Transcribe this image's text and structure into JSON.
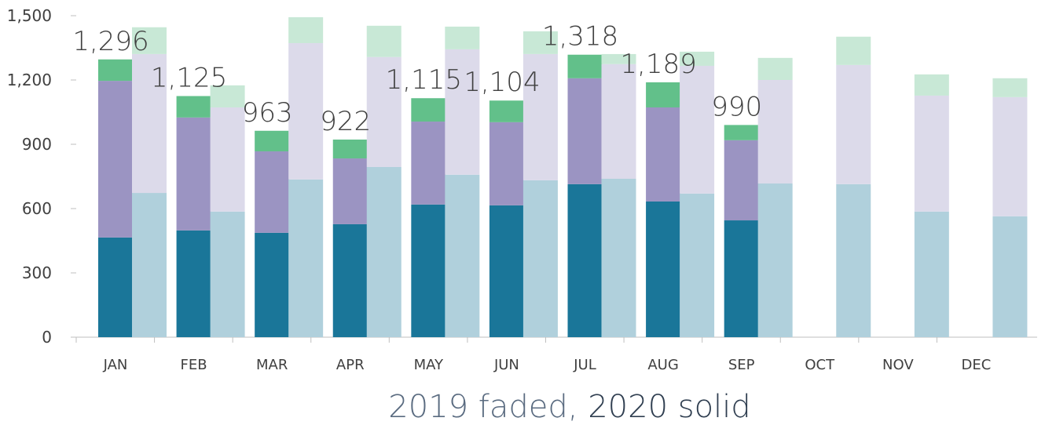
{
  "chart_data": {
    "type": "stacked_bar",
    "caption": [
      "2019 faded,",
      "2020 solid"
    ],
    "categories": [
      "JAN",
      "FEB",
      "MAR",
      "APR",
      "MAY",
      "JUN",
      "JUL",
      "AUG",
      "SEP",
      "OCT",
      "NOV",
      "DEC"
    ],
    "solid": [
      {
        "color": "#1a7699",
        "values": [
          465,
          498,
          487,
          527,
          619,
          615,
          714,
          633,
          545,
          null,
          null,
          null
        ]
      },
      {
        "color": "#9b94c2",
        "values": [
          731,
          527,
          380,
          307,
          387,
          388,
          494,
          439,
          374,
          null,
          null,
          null
        ]
      },
      {
        "color": "#62c08a",
        "values": [
          100,
          100,
          96,
          88,
          109,
          101,
          110,
          117,
          71,
          null,
          null,
          null
        ]
      }
    ],
    "faded": [
      {
        "color": "#b0d0dc",
        "values": [
          673,
          586,
          736,
          794,
          758,
          732,
          739,
          670,
          717,
          714,
          586,
          564
        ]
      },
      {
        "color": "#dcdaea",
        "values": [
          648,
          486,
          636,
          513,
          585,
          589,
          535,
          596,
          483,
          556,
          541,
          556
        ]
      },
      {
        "color": "#c8e8d6",
        "values": [
          125,
          103,
          121,
          146,
          106,
          106,
          47,
          66,
          103,
          132,
          99,
          88
        ]
      }
    ],
    "totals": {
      "values": [
        1296,
        1125,
        963,
        922,
        1115,
        1104,
        1318,
        1189,
        990,
        null,
        null,
        null
      ],
      "value_labels": [
        "1,296",
        "1,125",
        "963",
        "922",
        "1,115",
        "1,104",
        "1,318",
        "1,189",
        "990",
        null,
        null,
        null
      ]
    },
    "ylim": [
      0,
      1500
    ],
    "yticks": [
      0,
      300,
      600,
      900,
      {
        "value": 1200,
        "label": "1,200"
      },
      {
        "value": 1500,
        "label": "1,500"
      }
    ]
  }
}
